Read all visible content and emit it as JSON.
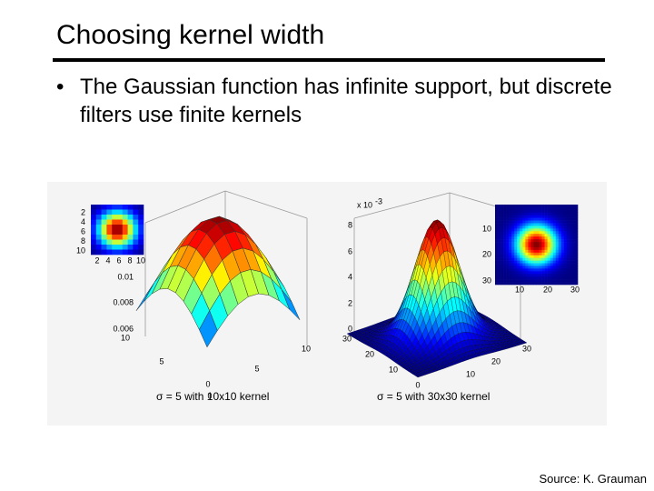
{
  "header": {
    "title": "Choosing kernel width"
  },
  "bullets": [
    "The Gaussian function has infinite support, but discrete filters use finite kernels"
  ],
  "figures": [
    {
      "caption": "σ = 5 with 10x10 kernel",
      "heatmap_y_ticks": [
        "2",
        "4",
        "6",
        "8",
        "10"
      ],
      "heatmap_x_ticks": [
        "2",
        "4",
        "6",
        "8",
        "10"
      ],
      "z_ticks": [
        "0.01",
        "0.008",
        "0.006"
      ],
      "left_axis_ticks": [
        "10",
        "5",
        "0"
      ],
      "right_axis_ticks": [
        "10",
        "5",
        "0"
      ]
    },
    {
      "caption": "σ = 5 with 30x30 kernel",
      "z_scale": "x 10",
      "z_exponent": "-3",
      "z_ticks": [
        "8",
        "6",
        "4",
        "2",
        "0"
      ],
      "heatmap_y_ticks": [
        "10",
        "20",
        "30"
      ],
      "heatmap_x_ticks": [
        "10",
        "20",
        "30"
      ],
      "left_axis_ticks": [
        "30",
        "20",
        "10",
        "0"
      ],
      "right_axis_ticks": [
        "30",
        "20",
        "10"
      ]
    }
  ],
  "source": "Source: K. Grauman"
}
